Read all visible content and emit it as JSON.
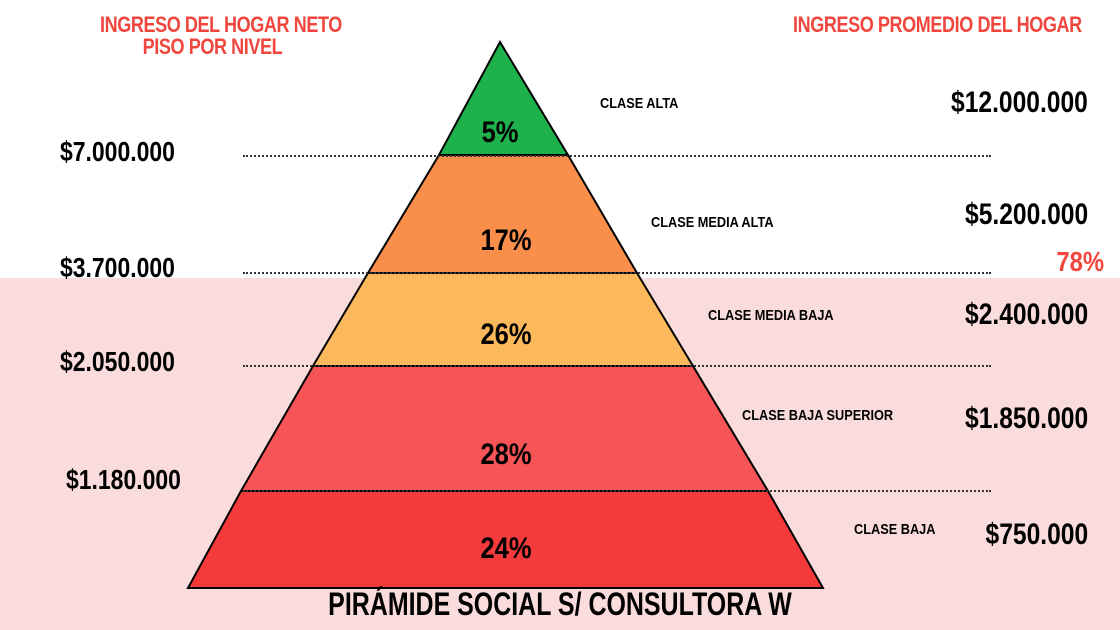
{
  "header": {
    "left_line1": "INGRESO DEL HOGAR NETO",
    "left_line2": "PISO POR NIVEL",
    "right": "INGRESO PROMEDIO DEL HOGAR"
  },
  "floors": [
    "$7.000.000",
    "$3.700.000",
    "$2.050.000",
    "$1.180.000"
  ],
  "levels": [
    {
      "class": "CLASE ALTA",
      "percent": "5%",
      "average": "$12.000.000",
      "color": "#1eb14c"
    },
    {
      "class": "CLASE MEDIA ALTA",
      "percent": "17%",
      "average": "$5.200.000",
      "color": "#f98f4b"
    },
    {
      "class": "CLASE MEDIA BAJA",
      "percent": "26%",
      "average": "$2.400.000",
      "color": "#fbb85c"
    },
    {
      "class": "CLASE BAJA SUPERIOR",
      "percent": "28%",
      "average": "$1.850.000",
      "color": "#f75457"
    },
    {
      "class": "CLASE BAJA",
      "percent": "24%",
      "average": "$750.000",
      "color": "#f53a3b"
    }
  ],
  "share_label": "78%",
  "caption": "PIRÁMIDE SOCIAL S/ CONSULTORA W",
  "colors": {
    "header_red": "#f0463e",
    "band_pink": "#fbdcdc"
  }
}
